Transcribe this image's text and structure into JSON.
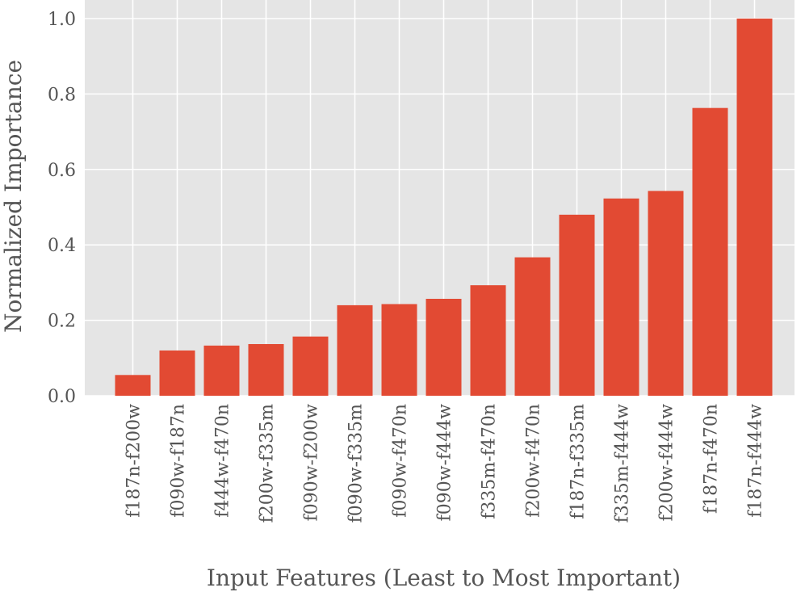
{
  "chart_data": {
    "type": "bar",
    "xlabel": "Input Features (Least to Most Important)",
    "ylabel": "Normalized Importance",
    "ylim": [
      0,
      1.0
    ],
    "yticks": [
      "0.0",
      "0.2",
      "0.4",
      "0.6",
      "0.8",
      "1.0"
    ],
    "categories": [
      "f187n-f200w",
      "f090w-f187n",
      "f444w-f470n",
      "f200w-f335m",
      "f090w-f200w",
      "f090w-f335m",
      "f090w-f470n",
      "f090w-f444w",
      "f335m-f470n",
      "f200w-f470n",
      "f187n-f335m",
      "f335m-f444w",
      "f200w-f444w",
      "f187n-f470n",
      "f187n-f444w"
    ],
    "values": [
      0.055,
      0.12,
      0.133,
      0.137,
      0.157,
      0.24,
      0.243,
      0.257,
      0.293,
      0.367,
      0.48,
      0.523,
      0.543,
      0.763,
      1.0
    ],
    "grid": true,
    "colors": {
      "bar": "#E24A33",
      "background": "#E5E5E5",
      "grid": "#FFFFFF",
      "text": "#555555"
    }
  }
}
